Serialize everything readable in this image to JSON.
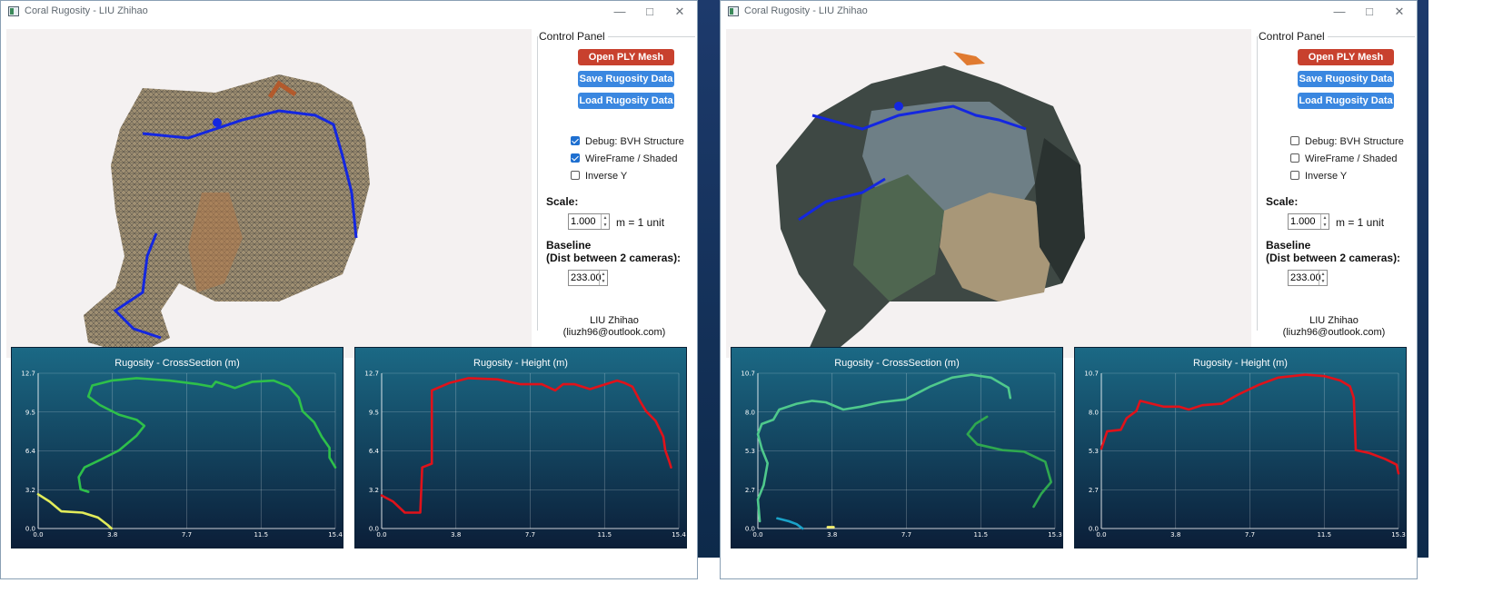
{
  "windows": [
    {
      "title": "Coral Rugosity - LIU Zhihao",
      "control_panel": {
        "title": "Control Panel",
        "buttons": {
          "open": "Open PLY Mesh",
          "save": "Save Rugosity Data",
          "load": "Load Rugosity Data"
        },
        "checkboxes": [
          {
            "label": "Debug: BVH Structure",
            "checked": true
          },
          {
            "label": "WireFrame / Shaded",
            "checked": true
          },
          {
            "label": "Inverse Y",
            "checked": false
          }
        ],
        "scale_label": "Scale:",
        "scale_value": "1.000",
        "scale_unit": "m = 1 unit",
        "baseline_label": "Baseline",
        "baseline_sub": "(Dist between 2 cameras):",
        "baseline_value": "233.00",
        "author_name": "LIU Zhihao",
        "author_email": "(liuzh96@outlook.com)"
      },
      "charts": [
        {
          "title": "Rugosity - CrossSection (m)",
          "type": "line",
          "xticks": [
            "0.0",
            "3.8",
            "7.7",
            "11.5",
            "15.4"
          ],
          "yticks": [
            "0.0",
            "3.2",
            "6.4",
            "9.5",
            "12.7"
          ],
          "xlim": [
            0,
            15.4
          ],
          "ylim": [
            0,
            12.7
          ],
          "series": [
            {
              "color": "#2ec04a",
              "points": [
                [
                  2.6,
                  3.0
                ],
                [
                  2.2,
                  3.2
                ],
                [
                  2.1,
                  4.2
                ],
                [
                  2.4,
                  5.0
                ],
                [
                  3.2,
                  5.6
                ],
                [
                  4.2,
                  6.4
                ],
                [
                  5.1,
                  7.6
                ],
                [
                  5.5,
                  8.4
                ],
                [
                  5.1,
                  8.9
                ],
                [
                  4.2,
                  9.3
                ],
                [
                  3.2,
                  10.1
                ],
                [
                  2.6,
                  10.8
                ],
                [
                  2.8,
                  11.7
                ],
                [
                  3.8,
                  12.1
                ],
                [
                  5.1,
                  12.3
                ],
                [
                  6.8,
                  12.1
                ],
                [
                  8.3,
                  11.8
                ],
                [
                  9.0,
                  11.6
                ],
                [
                  9.2,
                  12.0
                ],
                [
                  10.2,
                  11.5
                ],
                [
                  11.1,
                  12.0
                ],
                [
                  12.2,
                  12.1
                ],
                [
                  13.0,
                  11.6
                ],
                [
                  13.5,
                  10.7
                ],
                [
                  13.7,
                  9.6
                ],
                [
                  14.3,
                  8.7
                ],
                [
                  14.7,
                  7.5
                ],
                [
                  15.1,
                  6.6
                ],
                [
                  15.1,
                  5.8
                ],
                [
                  15.4,
                  5.0
                ]
              ]
            },
            {
              "color": "#e2ec5a",
              "points": [
                [
                  0.0,
                  2.8
                ],
                [
                  0.6,
                  2.2
                ],
                [
                  1.2,
                  1.4
                ],
                [
                  2.3,
                  1.3
                ],
                [
                  3.1,
                  0.9
                ],
                [
                  3.6,
                  0.3
                ],
                [
                  3.8,
                  0.0
                ]
              ]
            }
          ]
        },
        {
          "title": "Rugosity - Height (m)",
          "type": "line",
          "xticks": [
            "0.0",
            "3.8",
            "7.7",
            "11.5",
            "15.4"
          ],
          "yticks": [
            "0.0",
            "3.2",
            "6.4",
            "9.5",
            "12.7"
          ],
          "xlim": [
            0,
            15.4
          ],
          "ylim": [
            0,
            12.7
          ],
          "series": [
            {
              "color": "#e0121a",
              "points": [
                [
                  0.0,
                  2.7
                ],
                [
                  0.6,
                  2.2
                ],
                [
                  1.2,
                  1.3
                ],
                [
                  2.0,
                  1.3
                ],
                [
                  2.1,
                  5.0
                ],
                [
                  2.6,
                  5.3
                ],
                [
                  2.6,
                  11.3
                ],
                [
                  3.5,
                  11.9
                ],
                [
                  4.5,
                  12.3
                ],
                [
                  6.0,
                  12.2
                ],
                [
                  7.2,
                  11.8
                ],
                [
                  8.3,
                  11.8
                ],
                [
                  9.0,
                  11.3
                ],
                [
                  9.4,
                  11.8
                ],
                [
                  10.0,
                  11.8
                ],
                [
                  10.8,
                  11.4
                ],
                [
                  12.2,
                  12.1
                ],
                [
                  12.6,
                  11.9
                ],
                [
                  13.0,
                  11.6
                ],
                [
                  13.4,
                  10.4
                ],
                [
                  13.7,
                  9.6
                ],
                [
                  14.2,
                  8.8
                ],
                [
                  14.6,
                  7.5
                ],
                [
                  14.7,
                  6.4
                ],
                [
                  14.9,
                  5.5
                ],
                [
                  15.0,
                  5.0
                ]
              ]
            }
          ]
        }
      ]
    },
    {
      "title": "Coral Rugosity - LIU Zhihao",
      "control_panel": {
        "title": "Control Panel",
        "buttons": {
          "open": "Open PLY Mesh",
          "save": "Save Rugosity Data",
          "load": "Load Rugosity Data"
        },
        "checkboxes": [
          {
            "label": "Debug: BVH Structure",
            "checked": false
          },
          {
            "label": "WireFrame / Shaded",
            "checked": false
          },
          {
            "label": "Inverse Y",
            "checked": false
          }
        ],
        "scale_label": "Scale:",
        "scale_value": "1.000",
        "scale_unit": "m = 1 unit",
        "baseline_label": "Baseline",
        "baseline_sub": "(Dist between 2 cameras):",
        "baseline_value": "233.00",
        "author_name": "LIU Zhihao",
        "author_email": "(liuzh96@outlook.com)"
      },
      "charts": [
        {
          "title": "Rugosity - CrossSection (m)",
          "type": "line",
          "xticks": [
            "0.0",
            "3.8",
            "7.7",
            "11.5",
            "15.3"
          ],
          "yticks": [
            "0.0",
            "2.7",
            "5.3",
            "8.0",
            "10.7"
          ],
          "xlim": [
            0,
            15.3
          ],
          "ylim": [
            0,
            10.7
          ],
          "series": [
            {
              "color": "#4fc98c",
              "points": [
                [
                  0.1,
                  0.5
                ],
                [
                  0.0,
                  2.0
                ],
                [
                  0.3,
                  3.0
                ],
                [
                  0.5,
                  4.5
                ],
                [
                  0.2,
                  5.5
                ],
                [
                  0.0,
                  6.5
                ],
                [
                  0.2,
                  7.2
                ],
                [
                  0.8,
                  7.5
                ],
                [
                  1.1,
                  8.2
                ],
                [
                  2.0,
                  8.6
                ],
                [
                  2.8,
                  8.8
                ],
                [
                  3.5,
                  8.7
                ],
                [
                  4.4,
                  8.2
                ],
                [
                  5.3,
                  8.4
                ],
                [
                  6.3,
                  8.7
                ],
                [
                  7.6,
                  8.9
                ],
                [
                  8.9,
                  9.8
                ],
                [
                  10.0,
                  10.4
                ],
                [
                  11.0,
                  10.6
                ],
                [
                  12.0,
                  10.4
                ],
                [
                  12.9,
                  9.7
                ],
                [
                  13.0,
                  9.0
                ]
              ]
            },
            {
              "color": "#2fa84f",
              "points": [
                [
                  11.8,
                  7.7
                ],
                [
                  11.2,
                  7.2
                ],
                [
                  10.8,
                  6.5
                ],
                [
                  11.3,
                  5.8
                ],
                [
                  12.6,
                  5.4
                ],
                [
                  13.7,
                  5.3
                ],
                [
                  14.8,
                  4.6
                ],
                [
                  15.1,
                  3.2
                ],
                [
                  14.6,
                  2.4
                ],
                [
                  14.2,
                  1.5
                ]
              ]
            },
            {
              "color": "#1aa2c8",
              "points": [
                [
                  1.0,
                  0.7
                ],
                [
                  1.6,
                  0.5
                ],
                [
                  2.0,
                  0.3
                ],
                [
                  2.3,
                  0.0
                ]
              ]
            },
            {
              "color": "#f4f06a",
              "points": [
                [
                  3.6,
                  0.1
                ],
                [
                  3.9,
                  0.1
                ]
              ]
            }
          ]
        },
        {
          "title": "Rugosity - Height (m)",
          "type": "line",
          "xticks": [
            "0.0",
            "3.8",
            "7.7",
            "11.5",
            "15.3"
          ],
          "yticks": [
            "0.0",
            "2.7",
            "5.3",
            "8.0",
            "10.7"
          ],
          "xlim": [
            0,
            15.3
          ],
          "ylim": [
            0,
            10.7
          ],
          "series": [
            {
              "color": "#e0121a",
              "points": [
                [
                  0.0,
                  5.5
                ],
                [
                  0.3,
                  6.7
                ],
                [
                  1.0,
                  6.8
                ],
                [
                  1.3,
                  7.6
                ],
                [
                  1.8,
                  8.1
                ],
                [
                  2.0,
                  8.8
                ],
                [
                  3.2,
                  8.4
                ],
                [
                  4.0,
                  8.4
                ],
                [
                  4.5,
                  8.2
                ],
                [
                  5.2,
                  8.5
                ],
                [
                  6.2,
                  8.6
                ],
                [
                  7.0,
                  9.2
                ],
                [
                  8.1,
                  9.9
                ],
                [
                  9.1,
                  10.4
                ],
                [
                  10.5,
                  10.6
                ],
                [
                  11.5,
                  10.5
                ],
                [
                  12.3,
                  10.2
                ],
                [
                  12.8,
                  9.8
                ],
                [
                  13.0,
                  9.0
                ],
                [
                  13.1,
                  5.4
                ],
                [
                  13.8,
                  5.2
                ],
                [
                  14.6,
                  4.8
                ],
                [
                  15.2,
                  4.4
                ],
                [
                  15.3,
                  3.8
                ]
              ]
            }
          ]
        }
      ]
    }
  ]
}
